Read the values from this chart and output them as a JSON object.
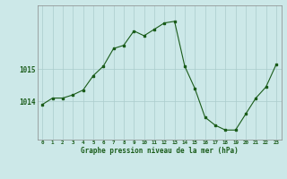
{
  "x": [
    0,
    1,
    2,
    3,
    4,
    5,
    6,
    7,
    8,
    9,
    10,
    11,
    12,
    13,
    14,
    15,
    16,
    17,
    18,
    19,
    20,
    21,
    22,
    23
  ],
  "y": [
    1013.9,
    1014.1,
    1014.1,
    1014.2,
    1014.35,
    1014.8,
    1015.1,
    1015.65,
    1015.75,
    1016.2,
    1016.05,
    1016.25,
    1016.45,
    1016.5,
    1015.1,
    1014.4,
    1013.5,
    1013.25,
    1013.1,
    1013.1,
    1013.6,
    1014.1,
    1014.45,
    1015.15
  ],
  "line_color": "#1a5c1a",
  "marker_color": "#1a5c1a",
  "bg_color": "#cce8e8",
  "grid_color": "#aacccc",
  "xlabel": "Graphe pression niveau de la mer (hPa)",
  "yticks": [
    1014,
    1015
  ],
  "ylim": [
    1012.8,
    1017.0
  ],
  "xlim": [
    -0.5,
    23.5
  ],
  "tick_color": "#1a5c1a"
}
